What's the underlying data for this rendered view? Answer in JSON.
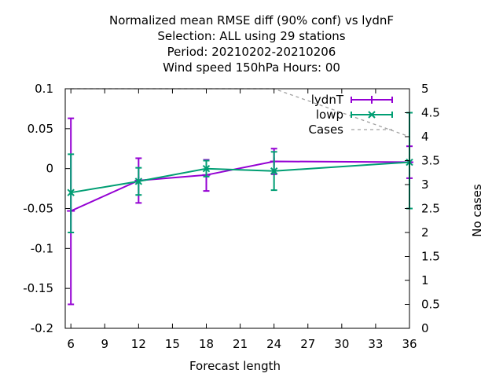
{
  "chart_data": {
    "type": "line",
    "title_lines": [
      "Normalized mean RMSE diff (90% conf) vs lydnF",
      "Selection: ALL using    29 stations",
      "Period: 20210202-20210206",
      "Wind speed 150hPa   Hours:  00"
    ],
    "xlabel": "Forecast length",
    "ylabel": "",
    "y2label": "No cases",
    "xlim": [
      5.5,
      36
    ],
    "ylim": [
      -0.2,
      0.1
    ],
    "y2lim": [
      0,
      5
    ],
    "xticks": [
      6,
      9,
      12,
      15,
      18,
      21,
      24,
      27,
      30,
      33,
      36
    ],
    "yticks": [
      -0.2,
      -0.15,
      -0.1,
      -0.05,
      0,
      0.05,
      0.1
    ],
    "ytick_labels": [
      "-0.2",
      "-0.15",
      "-0.1",
      "-0.05",
      "0",
      "0.05",
      "0.1"
    ],
    "y2ticks": [
      0,
      0.5,
      1,
      1.5,
      2,
      2.5,
      3,
      3.5,
      4,
      4.5,
      5
    ],
    "y2tick_labels": [
      "0",
      "0.5",
      "1",
      "1.5",
      "2",
      "2.5",
      "3",
      "3.5",
      "4",
      "4.5",
      "5"
    ],
    "grid": false,
    "legend_position": "top-right",
    "series": [
      {
        "name": "lydnT",
        "color": "#9400d3",
        "axis": "y",
        "marker": "plus",
        "x": [
          6,
          12,
          18,
          24,
          36
        ],
        "y": [
          -0.053,
          -0.015,
          -0.008,
          0.009,
          0.008
        ],
        "err_low": [
          -0.17,
          -0.043,
          -0.028,
          -0.007,
          -0.012
        ],
        "err_high": [
          0.063,
          0.013,
          0.011,
          0.025,
          0.028
        ]
      },
      {
        "name": "lowp",
        "color": "#009e73",
        "axis": "y",
        "marker": "x",
        "x": [
          6,
          12,
          18,
          24,
          36
        ],
        "y": [
          -0.03,
          -0.016,
          0.0,
          -0.003,
          0.008
        ],
        "err_low": [
          -0.08,
          -0.033,
          -0.01,
          -0.027,
          -0.05
        ],
        "err_high": [
          0.018,
          0.001,
          0.01,
          0.021,
          0.07
        ]
      },
      {
        "name": "Cases",
        "color": "#a0a0a0",
        "axis": "y2",
        "dashed": true,
        "x": [
          6,
          12,
          18,
          24,
          36
        ],
        "y": [
          5,
          5,
          5,
          5,
          4
        ]
      }
    ]
  }
}
